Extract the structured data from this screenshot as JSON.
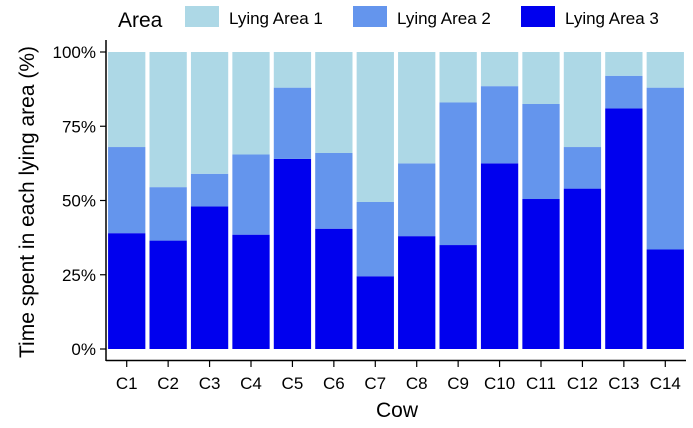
{
  "chart_data": {
    "type": "bar",
    "stacked": true,
    "normalized": true,
    "xlabel": "Cow",
    "ylabel": "Time spent in each lying area (%)",
    "ylim": [
      0,
      100
    ],
    "y_ticks": [
      "0%",
      "25%",
      "50%",
      "75%",
      "100%"
    ],
    "y_tick_values": [
      0,
      25,
      50,
      75,
      100
    ],
    "legend_title": "Area",
    "legend_position": "top",
    "grid": false,
    "categories": [
      "C1",
      "C2",
      "C3",
      "C4",
      "C5",
      "C6",
      "C7",
      "C8",
      "C9",
      "C10",
      "C11",
      "C12",
      "C13",
      "C14"
    ],
    "series": [
      {
        "name": "Lying Area 3",
        "color": "#0000ee",
        "values": [
          39,
          36.5,
          48,
          38.5,
          64,
          40.5,
          24.5,
          38,
          35,
          62.5,
          50.5,
          54,
          81,
          33.5
        ]
      },
      {
        "name": "Lying Area 2",
        "color": "#6495ed",
        "values": [
          29,
          18,
          11,
          27,
          24,
          25.5,
          25,
          24.5,
          48,
          26,
          32,
          14,
          11,
          54.5
        ]
      },
      {
        "name": "Lying Area 1",
        "color": "#add8e6",
        "values": [
          32,
          45.5,
          41,
          34.5,
          12,
          34,
          50.5,
          37.5,
          17,
          11.5,
          17.5,
          32,
          8,
          12
        ]
      }
    ],
    "legend_order": [
      "Lying Area 1",
      "Lying Area 2",
      "Lying Area 3"
    ]
  }
}
